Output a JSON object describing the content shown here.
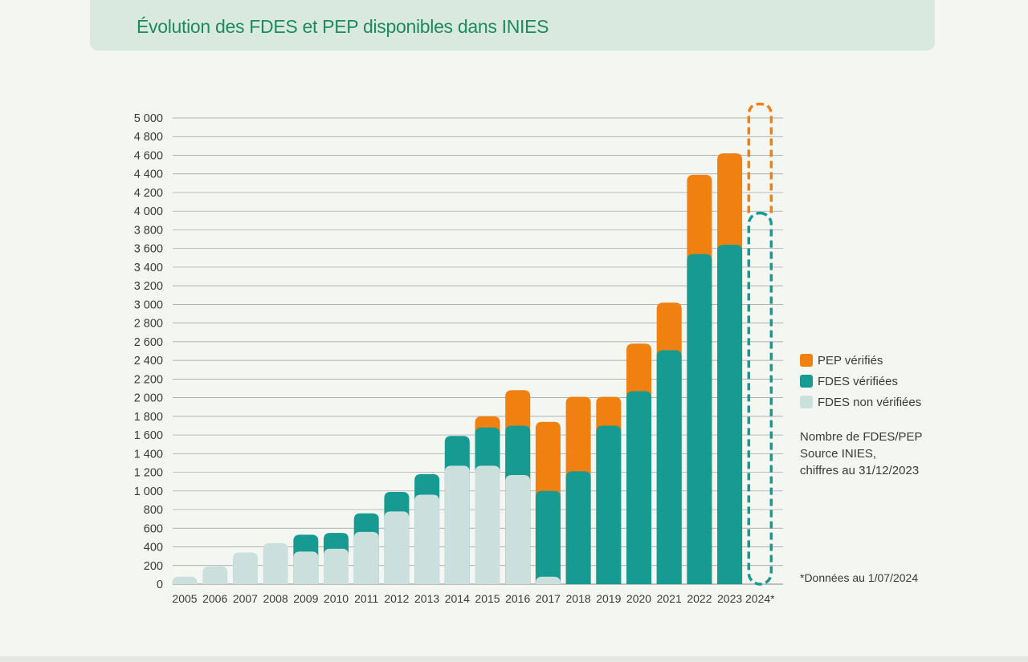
{
  "header": {
    "title": "Évolution des FDES et PEP disponibles dans INIES"
  },
  "legend": {
    "items": [
      {
        "label": "PEP vérifiés",
        "color": "#f08010"
      },
      {
        "label": "FDES vérifiées",
        "color": "#179a91"
      },
      {
        "label": "FDES non vérifiées",
        "color": "#cbdfdc"
      }
    ]
  },
  "note": {
    "lines": [
      "Nombre de FDES/PEP",
      "Source INIES,",
      "chiffres au 31/12/2023"
    ]
  },
  "footnote": "*Données au 1/07/2024",
  "colors": {
    "pep": "#f08010",
    "fdes_verified": "#179a91",
    "fdes_unverified": "#cbdfdc",
    "grid": "#9a9a9a",
    "title": "#1d8a5c"
  },
  "chart_data": {
    "type": "bar",
    "stacked": true,
    "title": "Évolution des FDES et PEP disponibles dans INIES",
    "xlabel": "",
    "ylabel": "",
    "ylim": [
      0,
      5000
    ],
    "yticks": [
      0,
      200,
      400,
      600,
      800,
      1000,
      1200,
      1400,
      1600,
      1800,
      2000,
      2200,
      2400,
      2600,
      2800,
      3000,
      3200,
      3400,
      3600,
      3800,
      4000,
      4200,
      4400,
      4600,
      4800,
      5000
    ],
    "ytick_labels": [
      "0",
      "200",
      "400",
      "600",
      "800",
      "1 000",
      "1 200",
      "1 400",
      "1 600",
      "1 800",
      "2 000",
      "2 200",
      "2 400",
      "2 600",
      "2 800",
      "3 000",
      "3 200",
      "3 400",
      "3 600",
      "3 800",
      "4 000",
      "4 200",
      "4 400",
      "4 600",
      "4 800",
      "5 000"
    ],
    "grid": true,
    "legend_position": "right",
    "categories": [
      "2005",
      "2006",
      "2007",
      "2008",
      "2009",
      "2010",
      "2011",
      "2012",
      "2013",
      "2014",
      "2015",
      "2016",
      "2017",
      "2018",
      "2019",
      "2020",
      "2021",
      "2022",
      "2023",
      "2024*"
    ],
    "series": [
      {
        "name": "FDES non vérifiées",
        "values": [
          80,
          190,
          340,
          440,
          350,
          380,
          560,
          780,
          960,
          1270,
          1270,
          1170,
          80,
          0,
          0,
          0,
          0,
          0,
          0,
          null
        ]
      },
      {
        "name": "FDES vérifiées",
        "values": [
          0,
          0,
          0,
          0,
          180,
          170,
          200,
          210,
          220,
          320,
          410,
          530,
          920,
          1210,
          1700,
          2070,
          2510,
          3540,
          3640,
          3980
        ]
      },
      {
        "name": "PEP vérifiés",
        "values": [
          0,
          0,
          0,
          0,
          0,
          0,
          0,
          0,
          0,
          0,
          120,
          380,
          740,
          800,
          310,
          510,
          510,
          850,
          980,
          1170
        ]
      }
    ],
    "projected_category": "2024*"
  }
}
